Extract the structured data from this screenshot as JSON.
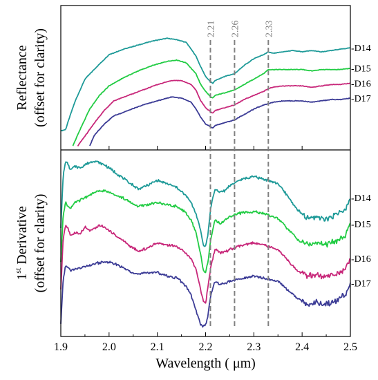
{
  "chart_data": {
    "type": "line",
    "xlabel": "Wavelength ( μm)",
    "xlim": [
      1.9,
      2.5
    ],
    "xticks": [
      "1.9",
      "2.0",
      "2.1",
      "2.2",
      "2.3",
      "2.4",
      "2.5"
    ],
    "reference_lines": [
      {
        "x": 2.21,
        "label": "2.21"
      },
      {
        "x": 2.26,
        "label": "2.26"
      },
      {
        "x": 2.33,
        "label": "2.33"
      }
    ],
    "colors": {
      "D14": "#1e9a98",
      "D15": "#22cc44",
      "D16": "#c8287a",
      "D17": "#3c3c96",
      "ref": "#808080"
    },
    "panels": [
      {
        "id": "top",
        "ylabel_line1": "Reflectance",
        "ylabel_line2": "(offset for clarity)",
        "ylim": [
          0,
          100
        ],
        "series": [
          {
            "name": "-D14",
            "color_key": "D14",
            "x": [
              1.9,
              1.91,
              1.92,
              1.93,
              1.95,
              1.98,
              2.0,
              2.03,
              2.06,
              2.09,
              2.12,
              2.14,
              2.16,
              2.18,
              2.19,
              2.2,
              2.21,
              2.215,
              2.22,
              2.24,
              2.26,
              2.28,
              2.3,
              2.32,
              2.33,
              2.34,
              2.36,
              2.38,
              2.4,
              2.42,
              2.44,
              2.46,
              2.48,
              2.5
            ],
            "y": [
              12,
              13,
              24,
              34,
              50,
              61,
              68,
              72,
              75,
              78,
              80,
              79,
              77,
              67,
              59,
              52,
              48,
              47,
              49,
              52,
              54,
              60,
              65,
              68,
              70,
              69,
              70,
              71,
              70,
              71,
              70,
              71,
              72,
              73
            ]
          },
          {
            "name": "-D15",
            "color_key": "D15",
            "x": [
              1.925,
              1.94,
              1.96,
              1.98,
              2.0,
              2.03,
              2.06,
              2.09,
              2.12,
              2.14,
              2.16,
              2.18,
              2.19,
              2.2,
              2.21,
              2.215,
              2.22,
              2.24,
              2.26,
              2.28,
              2.3,
              2.32,
              2.33,
              2.34,
              2.36,
              2.38,
              2.4,
              2.42,
              2.44,
              2.46,
              2.48,
              2.5
            ],
            "y": [
              1,
              13,
              28,
              38,
              45,
              51,
              56,
              60,
              63,
              64,
              62,
              54,
              46,
              41,
              37,
              36,
              38,
              40,
              42,
              46,
              50,
              54,
              57,
              57,
              57,
              57,
              57,
              56,
              57,
              57,
              57,
              58
            ]
          },
          {
            "name": "-D16",
            "color_key": "D16",
            "x": [
              1.935,
              1.95,
              1.97,
              1.99,
              2.01,
              2.04,
              2.07,
              2.1,
              2.13,
              2.15,
              2.17,
              2.18,
              2.19,
              2.2,
              2.21,
              2.215,
              2.22,
              2.24,
              2.26,
              2.28,
              2.3,
              2.32,
              2.33,
              2.34,
              2.36,
              2.38,
              2.4,
              2.42,
              2.44,
              2.46,
              2.48,
              2.5
            ],
            "y": [
              1,
              8,
              18,
              27,
              34,
              38,
              42,
              46,
              49,
              49,
              46,
              42,
              34,
              29,
              26,
              25,
              27,
              29,
              31,
              35,
              38,
              41,
              43,
              44,
              45,
              45,
              45,
              44,
              45,
              46,
              46,
              47
            ]
          },
          {
            "name": "-D17",
            "color_key": "D17",
            "x": [
              1.96,
              1.97,
              1.99,
              2.01,
              2.04,
              2.07,
              2.1,
              2.13,
              2.15,
              2.17,
              2.18,
              2.19,
              2.2,
              2.21,
              2.215,
              2.22,
              2.24,
              2.26,
              2.28,
              2.3,
              2.32,
              2.33,
              2.34,
              2.36,
              2.38,
              2.4,
              2.42,
              2.44,
              2.46,
              2.48,
              2.5
            ],
            "y": [
              1,
              9,
              17,
              23,
              27,
              31,
              34,
              37,
              36,
              33,
              28,
              22,
              17,
              15,
              14,
              16,
              18,
              20,
              24,
              28,
              31,
              32,
              33,
              34,
              34,
              34,
              33,
              34,
              35,
              35,
              36
            ]
          }
        ],
        "labels": [
          "-D14",
          "-D15",
          "-D16",
          "-D17"
        ]
      },
      {
        "id": "bottom",
        "ylabel_sup": "st",
        "ylabel_line1_prefix": "1",
        "ylabel_line1_suffix": " Derivative",
        "ylabel_line2": "(offset for clarity)",
        "ylim": [
          0,
          100
        ],
        "series": [
          {
            "name": "-D14",
            "color_key": "D14",
            "x": [
              1.9,
              1.905,
              1.91,
              1.915,
              1.92,
              1.93,
              1.94,
              1.95,
              1.96,
              1.97,
              1.98,
              1.99,
              2.0,
              2.02,
              2.04,
              2.06,
              2.08,
              2.1,
              2.12,
              2.14,
              2.16,
              2.17,
              2.18,
              2.19,
              2.195,
              2.2,
              2.205,
              2.21,
              2.215,
              2.22,
              2.23,
              2.24,
              2.25,
              2.27,
              2.3,
              2.33,
              2.35,
              2.37,
              2.39,
              2.41,
              2.43,
              2.45,
              2.47,
              2.49,
              2.5
            ],
            "y": [
              58,
              88,
              96,
              94,
              91,
              93,
              92,
              94,
              95,
              96,
              95,
              94,
              92,
              88,
              84,
              80,
              82,
              85,
              83,
              81,
              76,
              72,
              66,
              56,
              48,
              47,
              54,
              68,
              75,
              80,
              78,
              79,
              82,
              85,
              87,
              85,
              83,
              76,
              68,
              63,
              64,
              63,
              65,
              68,
              75
            ]
          },
          {
            "name": "-D15",
            "color_key": "D15",
            "x": [
              1.9,
              1.905,
              1.91,
              1.915,
              1.92,
              1.93,
              1.95,
              1.97,
              1.99,
              2.0,
              2.02,
              2.04,
              2.06,
              2.08,
              2.1,
              2.12,
              2.14,
              2.16,
              2.17,
              2.18,
              2.19,
              2.195,
              2.2,
              2.205,
              2.21,
              2.215,
              2.22,
              2.23,
              2.24,
              2.25,
              2.27,
              2.3,
              2.33,
              2.35,
              2.37,
              2.39,
              2.41,
              2.43,
              2.45,
              2.47,
              2.49,
              2.5
            ],
            "y": [
              38,
              66,
              72,
              70,
              69,
              72,
              75,
              78,
              79,
              78,
              76,
              73,
              70,
              71,
              72,
              71,
              70,
              66,
              62,
              55,
              42,
              33,
              32,
              38,
              50,
              57,
              62,
              60,
              62,
              64,
              66,
              67,
              65,
              63,
              57,
              51,
              48,
              49,
              48,
              50,
              53,
              60
            ]
          },
          {
            "name": "-D16",
            "color_key": "D16",
            "x": [
              1.9,
              1.905,
              1.91,
              1.915,
              1.92,
              1.93,
              1.94,
              1.95,
              1.96,
              1.97,
              1.98,
              1.99,
              2.0,
              2.02,
              2.04,
              2.06,
              2.08,
              2.1,
              2.12,
              2.14,
              2.16,
              2.17,
              2.18,
              2.19,
              2.195,
              2.2,
              2.205,
              2.21,
              2.215,
              2.22,
              2.23,
              2.24,
              2.25,
              2.27,
              2.3,
              2.33,
              2.35,
              2.37,
              2.39,
              2.41,
              2.43,
              2.45,
              2.47,
              2.49,
              2.5
            ],
            "y": [
              22,
              52,
              59,
              57,
              53,
              55,
              54,
              58,
              56,
              57,
              59,
              58,
              56,
              52,
              48,
              44,
              46,
              49,
              48,
              47,
              43,
              40,
              34,
              22,
              16,
              14,
              24,
              34,
              40,
              46,
              43,
              44,
              45,
              47,
              49,
              47,
              45,
              39,
              33,
              30,
              30,
              29,
              31,
              34,
              40
            ]
          },
          {
            "name": "-D17",
            "color_key": "D17",
            "x": [
              1.9,
              1.905,
              1.91,
              1.915,
              1.92,
              1.93,
              1.95,
              1.97,
              1.99,
              2.0,
              2.02,
              2.04,
              2.06,
              2.08,
              2.1,
              2.12,
              2.14,
              2.16,
              2.17,
              2.18,
              2.19,
              2.195,
              2.2,
              2.205,
              2.21,
              2.215,
              2.22,
              2.23,
              2.24,
              2.25,
              2.27,
              2.3,
              2.33,
              2.35,
              2.37,
              2.39,
              2.41,
              2.43,
              2.45,
              2.47,
              2.49,
              2.5
            ],
            "y": [
              2,
              28,
              36,
              35,
              33,
              34,
              35,
              37,
              38,
              38,
              36,
              33,
              31,
              32,
              32,
              30,
              29,
              24,
              19,
              10,
              2,
              1,
              2,
              7,
              18,
              23,
              27,
              25,
              26,
              27,
              28,
              30,
              28,
              27,
              22,
              17,
              14,
              15,
              14,
              16,
              19,
              26
            ]
          }
        ],
        "labels": [
          "-D14",
          "-D15",
          "-D16",
          "-D17"
        ]
      }
    ]
  }
}
